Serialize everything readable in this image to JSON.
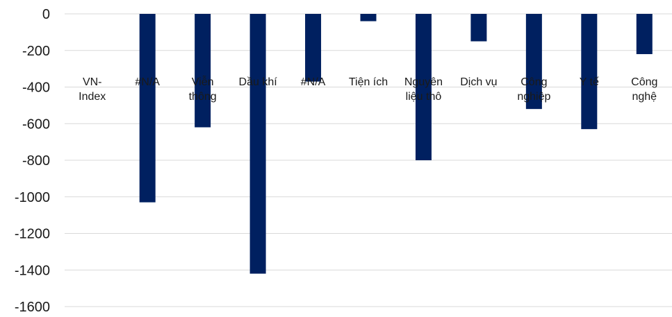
{
  "chart_data": {
    "type": "bar",
    "categories": [
      [
        "VN-",
        "Index"
      ],
      [
        "#N/A"
      ],
      [
        "Viễn",
        "thông"
      ],
      [
        "Dầu khí"
      ],
      [
        "#N/A"
      ],
      [
        "Tiện ích"
      ],
      [
        "Nguyên",
        "liệu thô"
      ],
      [
        "Dịch vụ"
      ],
      [
        "Công",
        "nghiệp"
      ],
      [
        "Y tế"
      ],
      [
        "Công",
        "nghệ"
      ]
    ],
    "values": [
      0,
      -1030,
      -620,
      -1420,
      -370,
      -40,
      -800,
      -150,
      -520,
      -630,
      -220
    ],
    "ylim": [
      -1600,
      0
    ],
    "yticks": [
      0,
      -200,
      -400,
      -600,
      -800,
      -1000,
      -1200,
      -1400,
      -1600
    ],
    "ytick_labels": [
      "0",
      "-200",
      "-400",
      "-600",
      "-800",
      "-1000",
      "-1200",
      "-1400",
      "-1600"
    ],
    "grid": true,
    "colors": {
      "bar": "#002060",
      "grid": "#d9d9d9",
      "text": "#1a1a1a"
    }
  }
}
